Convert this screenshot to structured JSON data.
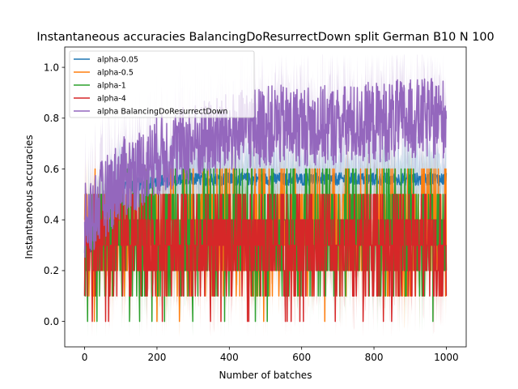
{
  "chart_data": {
    "type": "line",
    "title": "Instantaneous accuracies BalancingDoResurrectDown split German B10 N 100",
    "xlabel": "Number of batches",
    "ylabel": "Instantaneous accuracies",
    "xlim": [
      -55,
      1055
    ],
    "ylim": [
      -0.1,
      1.08
    ],
    "xticks": [
      0,
      200,
      400,
      600,
      800,
      1000
    ],
    "xtick_labels": [
      "0",
      "200",
      "400",
      "600",
      "800",
      "1000"
    ],
    "yticks": [
      0.0,
      0.2,
      0.4,
      0.6,
      0.8,
      1.0
    ],
    "ytick_labels": [
      "0.0",
      "0.2",
      "0.4",
      "0.6",
      "0.8",
      "1.0"
    ],
    "legend_position": "top-left",
    "n_points": 1001,
    "series": [
      {
        "name": "alpha-0.05",
        "color": "#1f77b4",
        "profile": {
          "x": [
            0,
            50,
            100,
            200,
            300,
            400,
            600,
            800,
            1000
          ],
          "y": [
            0.3,
            0.46,
            0.53,
            0.55,
            0.56,
            0.56,
            0.56,
            0.56,
            0.56
          ]
        }
      },
      {
        "name": "alpha-0.5",
        "color": "#ff7f0e",
        "profile": {
          "x": [
            0,
            50,
            100,
            200,
            400,
            600,
            800,
            1000
          ],
          "y": [
            0.3,
            0.34,
            0.36,
            0.37,
            0.38,
            0.39,
            0.4,
            0.41
          ]
        }
      },
      {
        "name": "alpha-1",
        "color": "#2ca02c",
        "profile": {
          "x": [
            0,
            50,
            100,
            200,
            400,
            600,
            800,
            1000
          ],
          "y": [
            0.3,
            0.33,
            0.35,
            0.36,
            0.37,
            0.37,
            0.38,
            0.38
          ]
        }
      },
      {
        "name": "alpha-4",
        "color": "#d62728",
        "profile": {
          "x": [
            0,
            50,
            100,
            200,
            400,
            600,
            800,
            1000
          ],
          "y": [
            0.3,
            0.3,
            0.3,
            0.3,
            0.3,
            0.3,
            0.3,
            0.3
          ]
        }
      },
      {
        "name": "alpha BalancingDoResurrectDown",
        "color": "#9467bd",
        "profile": {
          "x": [
            0,
            50,
            100,
            150,
            200,
            300,
            400,
            500,
            700,
            850,
            1000
          ],
          "y": [
            0.38,
            0.48,
            0.56,
            0.6,
            0.65,
            0.7,
            0.74,
            0.77,
            0.77,
            0.79,
            0.8
          ]
        }
      }
    ]
  }
}
